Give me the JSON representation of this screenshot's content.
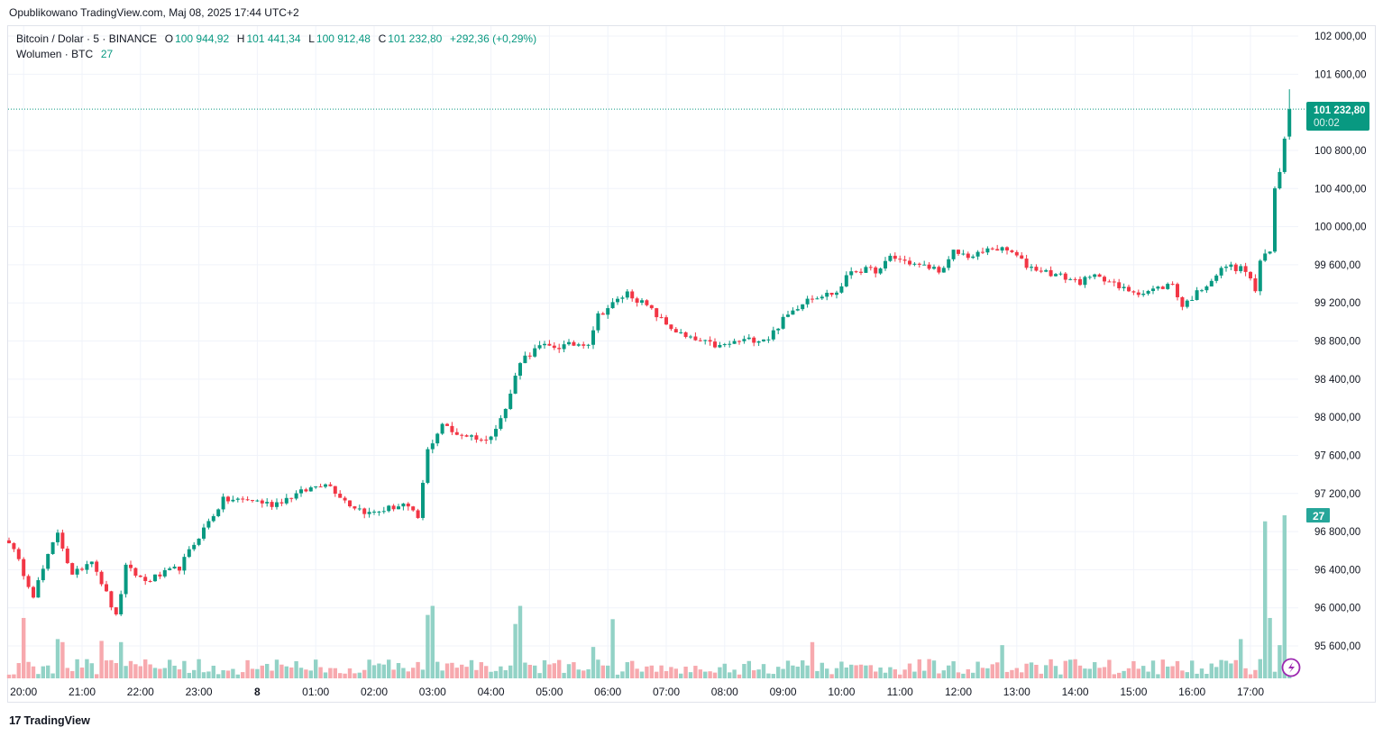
{
  "published": "Opublikowano TradingView.com, Maj 08, 2025 17:44 UTC+2",
  "legend": {
    "symbol": "Bitcoin / Dolar · 5 · BINANCE",
    "o_label": "O",
    "o": "100 944,92",
    "h_label": "H",
    "h": "101 441,34",
    "l_label": "L",
    "l": "100 912,48",
    "c_label": "C",
    "c": "101 232,80",
    "change": "+292,36 (+0,29%)",
    "volume_label": "Wolumen · BTC",
    "volume_value": "27"
  },
  "price_badge": {
    "price": "101 232,80",
    "countdown": "00:02"
  },
  "volume_badge": "27",
  "brand": "TradingView",
  "colors": {
    "up": "#089981",
    "down": "#f23645",
    "vol_up": "#92d2c6",
    "vol_down": "#f7a9ae",
    "grid": "#f0f3fa",
    "badge": "#089981",
    "alert": "#9c27b0"
  },
  "chart_data": {
    "type": "candlestick",
    "title": "Bitcoin / Dolar · 5 · BINANCE",
    "interval_minutes": 5,
    "first_candle_time": "19:45",
    "candle_count": 264,
    "ylim": [
      95300,
      102200
    ],
    "y_ticks": [
      "102 000,00",
      "101 600,00",
      "100 800,00",
      "100 400,00",
      "100 000,00",
      "99 600,00",
      "99 200,00",
      "98 800,00",
      "98 400,00",
      "98 000,00",
      "97 600,00",
      "97 200,00",
      "96 800,00",
      "96 400,00",
      "96 000,00",
      "95 600,00"
    ],
    "y_tick_values": [
      102000,
      101600,
      100800,
      100400,
      100000,
      99600,
      99200,
      98800,
      98400,
      98000,
      97600,
      97200,
      96800,
      96400,
      96000,
      95600
    ],
    "x_ticks": [
      "20:00",
      "21:00",
      "22:00",
      "23:00",
      "8",
      "01:00",
      "02:00",
      "03:00",
      "04:00",
      "05:00",
      "06:00",
      "07:00",
      "08:00",
      "09:00",
      "10:00",
      "11:00",
      "12:00",
      "13:00",
      "14:00",
      "15:00",
      "16:00",
      "17:00"
    ],
    "x_tick_candle_index": [
      3,
      15,
      27,
      39,
      51,
      63,
      75,
      87,
      99,
      111,
      123,
      135,
      147,
      159,
      171,
      183,
      195,
      207,
      219,
      231,
      243,
      255
    ],
    "close_waypoints": [
      [
        0,
        96706
      ],
      [
        5,
        96139
      ],
      [
        10,
        96800
      ],
      [
        13,
        96328
      ],
      [
        17,
        96517
      ],
      [
        22,
        95902
      ],
      [
        24,
        96422
      ],
      [
        28,
        96280
      ],
      [
        35,
        96422
      ],
      [
        39,
        96753
      ],
      [
        44,
        97131
      ],
      [
        50,
        97131
      ],
      [
        54,
        97084
      ],
      [
        59,
        97190
      ],
      [
        65,
        97320
      ],
      [
        70,
        97084
      ],
      [
        74,
        96990
      ],
      [
        81,
        97084
      ],
      [
        84,
        96942
      ],
      [
        86,
        97651
      ],
      [
        89,
        97935
      ],
      [
        91,
        97840
      ],
      [
        96,
        97790
      ],
      [
        98,
        97746
      ],
      [
        102,
        98077
      ],
      [
        105,
        98597
      ],
      [
        109,
        98739
      ],
      [
        113,
        98739
      ],
      [
        119,
        98786
      ],
      [
        121,
        99069
      ],
      [
        127,
        99306
      ],
      [
        131,
        99164
      ],
      [
        135,
        98975
      ],
      [
        139,
        98833
      ],
      [
        146,
        98739
      ],
      [
        150,
        98800
      ],
      [
        156,
        98833
      ],
      [
        159,
        99022
      ],
      [
        164,
        99258
      ],
      [
        170,
        99306
      ],
      [
        173,
        99542
      ],
      [
        179,
        99542
      ],
      [
        181,
        99684
      ],
      [
        187,
        99590
      ],
      [
        192,
        99542
      ],
      [
        194,
        99731
      ],
      [
        198,
        99684
      ],
      [
        202,
        99778
      ],
      [
        206,
        99731
      ],
      [
        209,
        99590
      ],
      [
        215,
        99495
      ],
      [
        220,
        99420
      ],
      [
        224,
        99495
      ],
      [
        228,
        99353
      ],
      [
        233,
        99306
      ],
      [
        239,
        99400
      ],
      [
        241,
        99164
      ],
      [
        244,
        99306
      ],
      [
        250,
        99590
      ],
      [
        254,
        99542
      ],
      [
        256,
        99330
      ],
      [
        257,
        99640
      ],
      [
        259,
        99731
      ],
      [
        260,
        100393
      ],
      [
        261,
        100580
      ],
      [
        262,
        100944
      ]
    ],
    "last_candle": {
      "open": 100944.92,
      "high": 101441.34,
      "low": 100912.48,
      "close": 101232.8
    },
    "last_price": 101232.8,
    "volume_ylim": [
      0,
      27
    ],
    "volume_spikes": [
      [
        3,
        10
      ],
      [
        10,
        6.5
      ],
      [
        11,
        6
      ],
      [
        19,
        6.2
      ],
      [
        23,
        6
      ],
      [
        86,
        10.5
      ],
      [
        87,
        12
      ],
      [
        104,
        9
      ],
      [
        105,
        12
      ],
      [
        120,
        5.2
      ],
      [
        124,
        9.8
      ],
      [
        165,
        6
      ],
      [
        204,
        5.5
      ],
      [
        253,
        6.5
      ],
      [
        258,
        26
      ],
      [
        259,
        10
      ],
      [
        261,
        5.5
      ],
      [
        262,
        27
      ]
    ]
  }
}
